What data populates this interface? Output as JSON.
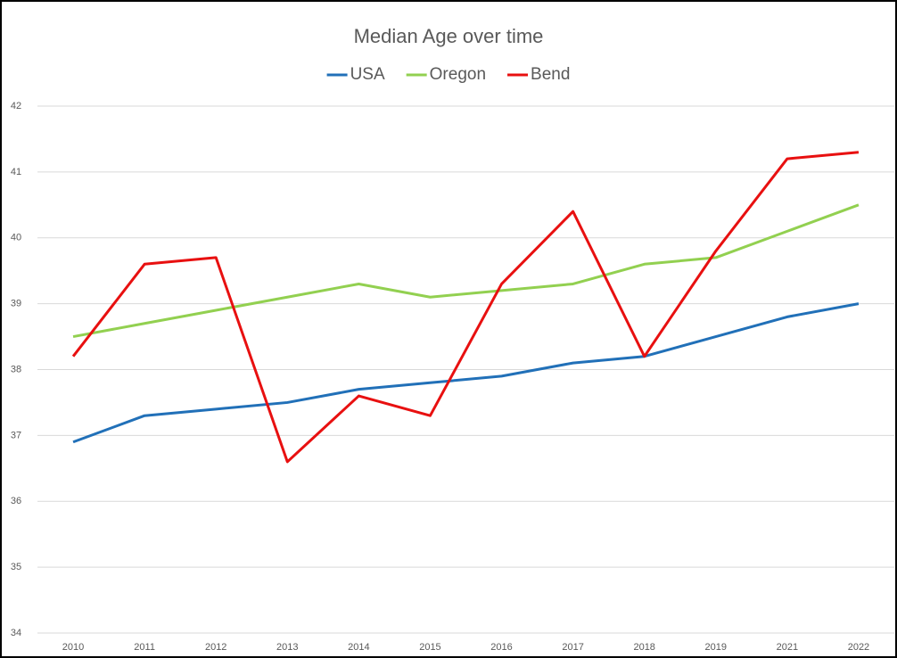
{
  "chart_data": {
    "type": "line",
    "title": "Median Age over time",
    "categories": [
      "2010",
      "2011",
      "2012",
      "2013",
      "2014",
      "2015",
      "2016",
      "2017",
      "2018",
      "2019",
      "2021",
      "2022"
    ],
    "series": [
      {
        "name": "USA",
        "color": "#2170b8",
        "values": [
          36.9,
          37.3,
          37.4,
          37.5,
          37.7,
          37.8,
          37.9,
          38.1,
          38.2,
          38.5,
          38.8,
          39.0
        ]
      },
      {
        "name": "Oregon",
        "color": "#92d050",
        "values": [
          38.5,
          38.7,
          38.9,
          39.1,
          39.3,
          39.1,
          39.2,
          39.3,
          39.6,
          39.7,
          40.1,
          40.5
        ]
      },
      {
        "name": "Bend",
        "color": "#e81010",
        "values": [
          38.2,
          39.6,
          39.7,
          36.6,
          37.6,
          37.3,
          39.3,
          40.4,
          38.2,
          39.8,
          41.2,
          41.3
        ]
      }
    ],
    "ylim": [
      34,
      42
    ],
    "yticks": [
      34,
      35,
      36,
      37,
      38,
      39,
      40,
      41,
      42
    ],
    "grid": true,
    "legend": "top"
  }
}
